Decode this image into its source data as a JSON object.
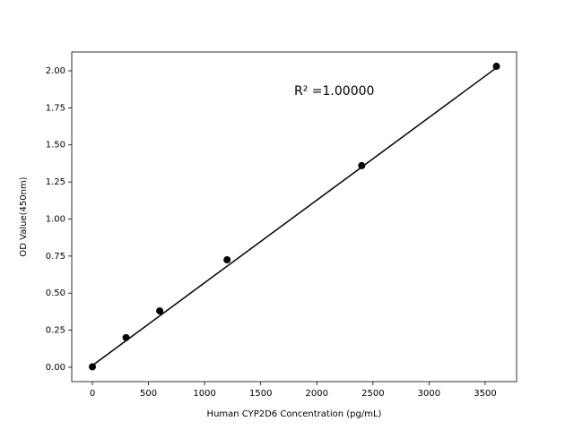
{
  "chart_data": {
    "type": "scatter",
    "xlabel": "Human CYP2D6 Concentration (pg/mL)",
    "ylabel": "OD Value(450nm)",
    "annotation": "R² =1.00000",
    "series": [
      {
        "style": "markers",
        "color": "#000000",
        "x": [
          0,
          300,
          600,
          1200,
          2400,
          3600
        ],
        "values": [
          0.003,
          0.2,
          0.38,
          0.725,
          1.36,
          2.03
        ]
      },
      {
        "style": "line",
        "color": "#000000",
        "x": [
          0,
          3600
        ],
        "values": [
          0.012,
          2.02
        ]
      }
    ],
    "xlim": [
      -184,
      3780
    ],
    "ylim": [
      -0.097,
      2.127
    ],
    "xticks": [
      0,
      500,
      1000,
      1500,
      2000,
      2500,
      3000,
      3500
    ],
    "yticks": [
      {
        "value": 0,
        "label": "0.00"
      },
      {
        "value": 0.25,
        "label": "0.25"
      },
      {
        "value": 0.5,
        "label": "0.50"
      },
      {
        "value": 0.75,
        "label": "0.75"
      },
      {
        "value": 1,
        "label": "1.00"
      },
      {
        "value": 1.25,
        "label": "1.25"
      },
      {
        "value": 1.5,
        "label": "1.50"
      },
      {
        "value": 1.75,
        "label": "1.75"
      },
      {
        "value": 2,
        "label": "2.00"
      }
    ],
    "grid": false
  }
}
